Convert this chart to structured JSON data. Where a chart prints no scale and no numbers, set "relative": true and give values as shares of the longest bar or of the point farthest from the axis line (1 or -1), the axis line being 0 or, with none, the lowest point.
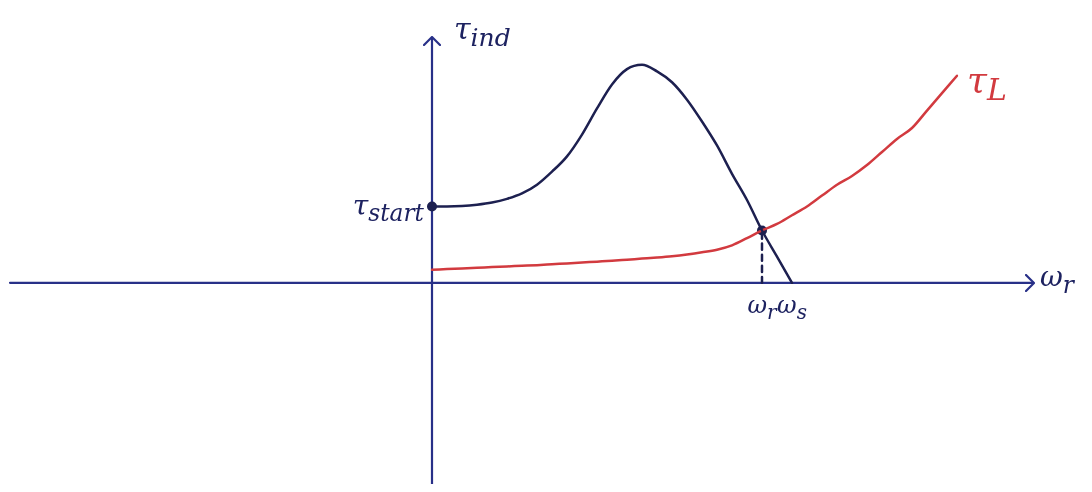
{
  "chart_data": {
    "type": "line",
    "relative": true,
    "ylabel": "τ$_{ind}$",
    "xlabel": "ω$_{r}$",
    "categories": [
      null,
      null,
      null,
      null,
      null,
      null,
      null,
      null,
      null,
      null,
      null,
      null,
      null,
      null,
      null,
      null,
      null,
      null,
      null,
      null,
      null,
      null,
      "ω$_{r}$",
      null,
      "ω$_{s}$",
      null,
      null,
      null,
      null,
      null,
      null,
      null,
      null,
      null,
      null,
      null
    ],
    "series": [
      {
        "color": "#1d2050",
        "values": [
          0.35,
          0.35,
          0.352,
          0.358,
          0.368,
          0.385,
          0.41,
          0.45,
          0.51,
          0.58,
          0.68,
          0.8,
          0.91,
          0.98,
          1,
          0.97,
          0.92,
          0.84,
          0.74,
          0.63,
          0.5,
          0.38,
          0.24,
          0.12,
          0,
          null,
          null,
          null,
          null,
          null,
          null,
          null,
          null,
          null,
          null,
          null
        ]
      },
      {
        "name": "τ$_{L}$",
        "color": "#d23a3f",
        "values": [
          0.06,
          0.063,
          0.066,
          0.069,
          0.072,
          0.075,
          0.078,
          0.081,
          0.085,
          0.089,
          0.093,
          0.097,
          0.101,
          0.106,
          0.111,
          0.116,
          0.122,
          0.13,
          0.14,
          0.152,
          0.172,
          0.205,
          0.24,
          0.27,
          0.31,
          0.35,
          0.4,
          0.45,
          0.49,
          0.54,
          0.6,
          0.66,
          0.71,
          0.79,
          0.87,
          0.95
        ]
      },
      {
        "type": "scatter",
        "marker": "circle",
        "color": "#1d2050",
        "values": [
          0.35,
          null,
          null,
          null,
          null,
          null,
          null,
          null,
          null,
          null,
          null,
          null,
          null,
          null,
          null,
          null,
          null,
          null,
          null,
          null,
          null,
          null,
          0.24,
          null,
          null,
          null,
          null,
          null,
          null,
          null,
          null,
          null,
          null,
          null,
          null,
          null
        ]
      },
      {
        "type": "line",
        "line_style": "dashed",
        "color": "#1d2050",
        "x": [
          "ω$_{r}$",
          "ω$_{r}$"
        ],
        "values": [
          0,
          0.24
        ]
      }
    ],
    "annotations": [
      "τ$_{start}$"
    ]
  }
}
